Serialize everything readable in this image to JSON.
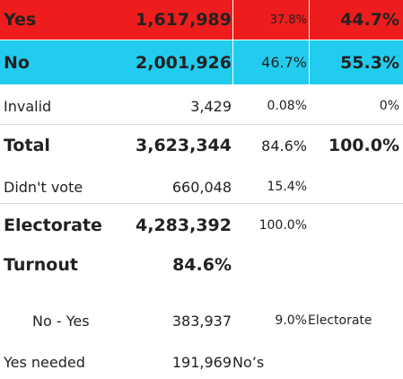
{
  "rows": {
    "yes": {
      "label": "Yes",
      "votes": "1,617,989",
      "pct_electorate": "37.8%",
      "pct_valid": "44.7%"
    },
    "no": {
      "label": "No",
      "votes": "2,001,926",
      "pct_electorate": "46.7%",
      "pct_valid": "55.3%"
    },
    "invalid": {
      "label": "Invalid",
      "votes": "3,429",
      "pct_electorate": "0.08%",
      "pct_valid": "0%"
    },
    "total": {
      "label": "Total",
      "votes": "3,623,344",
      "pct_electorate": "84.6%",
      "pct_valid": "100.0%"
    },
    "didnt_vote": {
      "label": "Didn't vote",
      "votes": "660,048",
      "pct_electorate": "15.4%"
    },
    "electorate": {
      "label": "Electorate",
      "votes": "4,283,392",
      "pct_electorate": "100.0%"
    },
    "turnout": {
      "label": "Turnout",
      "value": "84.6%"
    },
    "no_minus_yes": {
      "label": "No - Yes",
      "votes": "383,937",
      "pct": "9.0%",
      "note": "Electorate"
    },
    "yes_needed": {
      "label": "Yes needed",
      "votes": "191,969",
      "note": "No’s"
    }
  },
  "colors": {
    "yes_bg": "#ee1c1c",
    "no_bg": "#22ccee",
    "text": "#222222"
  }
}
